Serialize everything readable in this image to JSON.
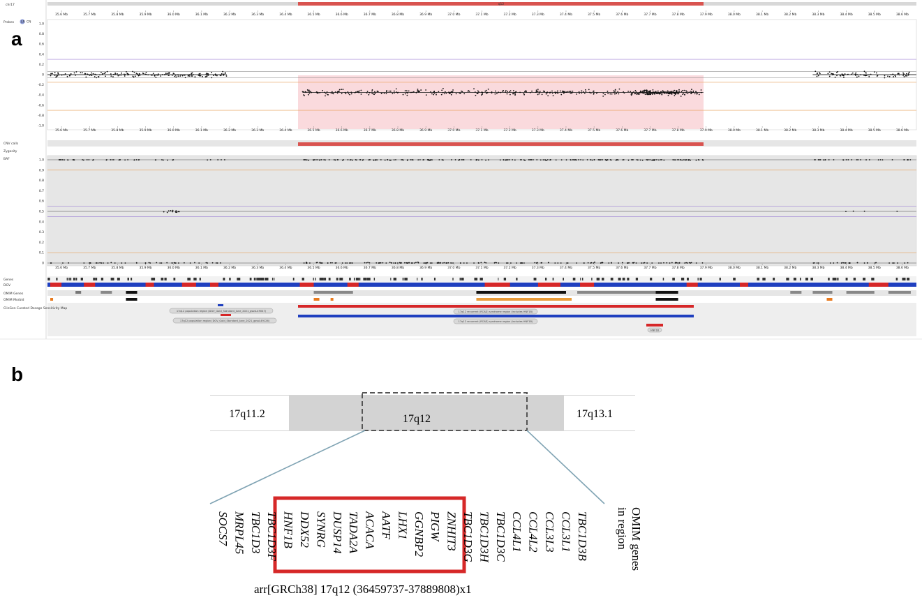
{
  "panel_a": {
    "letter": "a",
    "chrom_label": "chr17",
    "top_bar_label": "q12",
    "track_names": [
      "Probes",
      "CNV calls",
      "Zygosity",
      "BAF",
      "Genes",
      "DGV",
      "OMIM Genes",
      "OMIM Morbid",
      "ClinGen Curated Dosage Sensitivity Map"
    ],
    "probes_buttons": [
      "LR",
      "CN"
    ],
    "mb_ticks": [
      "35.6 Mb",
      "35.7 Mb",
      "35.8 Mb",
      "35.9 Mb",
      "36.0 Mb",
      "36.1 Mb",
      "36.2 Mb",
      "36.3 Mb",
      "36.4 Mb",
      "36.5 Mb",
      "36.6 Mb",
      "36.7 Mb",
      "36.8 Mb",
      "36.9 Mb",
      "37.0 Mb",
      "37.1 Mb",
      "37.2 Mb",
      "37.3 Mb",
      "37.4 Mb",
      "37.5 Mb",
      "37.6 Mb",
      "37.7 Mb",
      "37.8 Mb",
      "37.9 Mb",
      "38.0 Mb",
      "38.1 Mb",
      "38.2 Mb",
      "38.3 Mb",
      "38.4 Mb",
      "38.5 Mb",
      "38.6 Mb"
    ],
    "lr_yticks": [
      "1.0",
      "0.8",
      "0.6",
      "0.4",
      "0.2",
      "0",
      "-0.2",
      "-0.4",
      "-0.6",
      "-0.8",
      "-1.0"
    ],
    "baf_yticks": [
      "1.0",
      "0.9",
      "0.8",
      "0.7",
      "0.6",
      "0.5",
      "0.4",
      "0.3",
      "0.2",
      "0.1",
      "0"
    ],
    "pill_labels": [
      "17q12 population region (DGV_Gold_Standard_June_2021_gssvL49047)",
      "17q12 population region (DGV_Gold_Standard_June_2021_gssvL49126)",
      "17q12 recurrent (RCAD) syndrome region (includes HNF1B)",
      "17q12 recurrent (RCAD) syndrome region (includes HNF1B)",
      "HNF1B"
    ],
    "colors": {
      "deletion_fill": "#fadadd",
      "deletion_bar": "#d9534f",
      "loss": "#d62728",
      "gain": "#1f3fbf",
      "threshold": "#e8a05a",
      "baf_mid": "#9b7fd4",
      "track_bg": "#e6e6e6"
    }
  },
  "panel_b": {
    "letter": "b",
    "bands": {
      "left": "17q11.2",
      "center": "17q12",
      "right": "17q13.1"
    },
    "genes": [
      "SOCS7",
      "MRPL45",
      "TBC1D3",
      "TBC1D3F",
      "HNF1B",
      "DDX52",
      "SYNRG",
      "DUSP14",
      "TADA2A",
      "ACACA",
      "AATF",
      "LHX1",
      "GGNBP2",
      "PIGW",
      "ZNHIT3",
      "TBC1D3G",
      "TBC1D3H",
      "TBC1D3C",
      "CCL4L1",
      "CCL4L2",
      "CCL3L3",
      "CCL3L1",
      "TBC1D3B"
    ],
    "omim_label_lines": [
      "OMIM genes",
      "in region"
    ],
    "iscn": "arr[GRCh38] 17q12 (36459737-37889808)x1"
  },
  "chart_data": {
    "type": "scatter",
    "chromosome": "chr17",
    "x_range_mb": [
      35.55,
      38.65
    ],
    "deleted_region_mb": [
      36.46,
      37.89
    ],
    "log_ratio": {
      "ylim": [
        -1.0,
        1.0
      ],
      "normal_mean": 0.0,
      "deleted_mean": -0.35,
      "thresholds": [
        0.3,
        -0.15,
        -0.7
      ]
    },
    "baf": {
      "ylim": [
        0,
        1
      ],
      "bands": [
        0,
        0.5,
        1.0
      ],
      "thresholds": [
        0.9,
        0.1
      ],
      "mid_lines": [
        0.55,
        0.45
      ]
    }
  }
}
